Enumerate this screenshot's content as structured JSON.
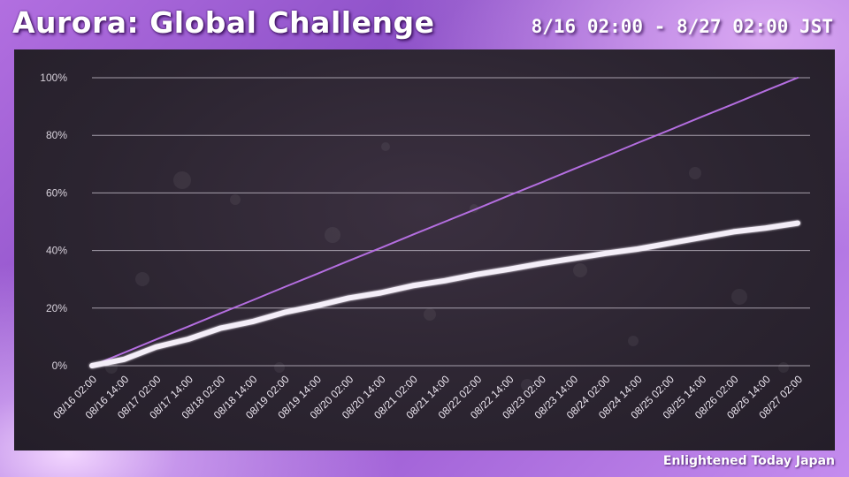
{
  "header": {
    "title": "Aurora: Global Challenge",
    "period": "8/16 02:00 - 8/27 02:00 JST"
  },
  "footer": {
    "credit": "Enlightened Today Japan"
  },
  "chart_data": {
    "type": "line",
    "ylim": [
      0,
      100
    ],
    "y_ticks": [
      "0%",
      "20%",
      "40%",
      "60%",
      "80%",
      "100%"
    ],
    "categories": [
      "08/16 02:00",
      "08/16 14:00",
      "08/17 02:00",
      "08/17 14:00",
      "08/18 02:00",
      "08/18 14:00",
      "08/19 02:00",
      "08/19 14:00",
      "08/20 02:00",
      "08/20 14:00",
      "08/21 02:00",
      "08/21 14:00",
      "08/22 02:00",
      "08/22 14:00",
      "08/23 02:00",
      "08/23 14:00",
      "08/24 02:00",
      "08/24 14:00",
      "08/25 02:00",
      "08/25 14:00",
      "08/26 02:00",
      "08/26 14:00",
      "08/27 02:00"
    ],
    "grid": true,
    "series": [
      {
        "color": "#b46ee0",
        "values": [
          0,
          4.5,
          9.1,
          13.6,
          18.2,
          22.7,
          27.3,
          31.8,
          36.4,
          40.9,
          45.5,
          50.0,
          54.5,
          59.1,
          63.6,
          68.2,
          72.7,
          77.3,
          81.8,
          86.4,
          90.9,
          95.5,
          100
        ]
      },
      {
        "color": "#f4eef8",
        "values": [
          0,
          2.2,
          6.5,
          9.2,
          13.0,
          15.3,
          18.5,
          20.8,
          23.5,
          25.3,
          27.8,
          29.5,
          31.7,
          33.5,
          35.5,
          37.2,
          39.0,
          40.5,
          42.5,
          44.5,
          46.5,
          47.8,
          49.5
        ]
      }
    ]
  }
}
